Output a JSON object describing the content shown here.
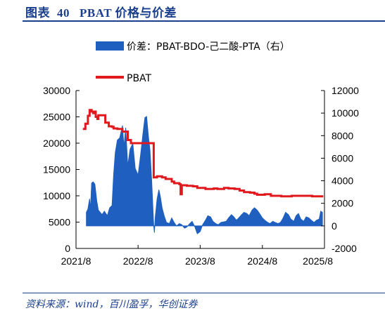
{
  "header": {
    "label": "图表",
    "number": "40",
    "title": "PBAT 价格与价差"
  },
  "source": "资料来源：wind，百川盈孚，华创证券",
  "colors": {
    "spread": "#1f5fbf",
    "price": "#e0191e",
    "title": "#1a3f8c"
  },
  "chart_data": {
    "type": "area+line",
    "dual_axis": true,
    "x": {
      "ticks": [
        "2021/8",
        "2022/8",
        "2023/8",
        "2024/8",
        "2025/8"
      ],
      "range": [
        "2021/8",
        "2025/8"
      ]
    },
    "y_left": {
      "ticks": [
        0,
        5000,
        10000,
        15000,
        20000,
        25000,
        30000
      ],
      "range": [
        0,
        30000
      ]
    },
    "y_right": {
      "ticks": [
        -2000,
        0,
        2000,
        4000,
        6000,
        8000,
        10000,
        12000
      ],
      "range": [
        -2000,
        12000
      ]
    },
    "legend": {
      "position": "top",
      "items": [
        "价差：PBAT-BDO-己二酸-PTA（右）",
        "PBAT"
      ]
    },
    "series": [
      {
        "name": "价差：PBAT-BDO-己二酸-PTA（右）",
        "type": "area",
        "axis": "right",
        "points": [
          [
            "2021-10-01",
            1200
          ],
          [
            "2021-10-10",
            1500
          ],
          [
            "2021-10-20",
            2400
          ],
          [
            "2021-10-25",
            1400
          ],
          [
            "2021-11-01",
            3800
          ],
          [
            "2021-11-10",
            3900
          ],
          [
            "2021-11-20",
            3700
          ],
          [
            "2021-12-01",
            2200
          ],
          [
            "2021-12-10",
            1400
          ],
          [
            "2022-01-01",
            1000
          ],
          [
            "2022-01-15",
            1300
          ],
          [
            "2022-02-01",
            900
          ],
          [
            "2022-02-15",
            1600
          ],
          [
            "2022-03-01",
            1800
          ],
          [
            "2022-03-10",
            4500
          ],
          [
            "2022-03-20",
            6500
          ],
          [
            "2022-04-01",
            7600
          ],
          [
            "2022-04-15",
            7800
          ],
          [
            "2022-05-01",
            8900
          ],
          [
            "2022-05-10",
            7000
          ],
          [
            "2022-05-20",
            8700
          ],
          [
            "2022-06-01",
            5300
          ],
          [
            "2022-06-15",
            6800
          ],
          [
            "2022-07-01",
            7300
          ],
          [
            "2022-07-15",
            5100
          ],
          [
            "2022-08-01",
            4500
          ],
          [
            "2022-08-15",
            6200
          ],
          [
            "2022-09-01",
            8500
          ],
          [
            "2022-09-10",
            9600
          ],
          [
            "2022-09-20",
            9700
          ],
          [
            "2022-10-01",
            7900
          ],
          [
            "2022-10-10",
            6700
          ],
          [
            "2022-10-20",
            4000
          ],
          [
            "2022-11-01",
            0
          ],
          [
            "2022-11-05",
            -600
          ],
          [
            "2022-11-10",
            800
          ],
          [
            "2022-11-15",
            1500
          ],
          [
            "2022-11-20",
            2300
          ],
          [
            "2022-12-01",
            3200
          ],
          [
            "2022-12-10",
            2600
          ],
          [
            "2022-12-20",
            1600
          ],
          [
            "2023-01-01",
            900
          ],
          [
            "2023-01-15",
            300
          ],
          [
            "2023-02-01",
            200
          ],
          [
            "2023-02-15",
            700
          ],
          [
            "2023-03-01",
            300
          ],
          [
            "2023-03-15",
            0
          ],
          [
            "2023-04-01",
            200
          ],
          [
            "2023-04-15",
            100
          ],
          [
            "2023-05-01",
            -200
          ],
          [
            "2023-05-15",
            -100
          ],
          [
            "2023-06-01",
            200
          ],
          [
            "2023-06-15",
            400
          ],
          [
            "2023-07-01",
            -100
          ],
          [
            "2023-07-15",
            -700
          ],
          [
            "2023-08-01",
            -500
          ],
          [
            "2023-08-15",
            100
          ],
          [
            "2023-09-01",
            500
          ],
          [
            "2023-09-15",
            900
          ],
          [
            "2023-10-01",
            800
          ],
          [
            "2023-10-15",
            400
          ],
          [
            "2023-11-01",
            200
          ],
          [
            "2023-11-15",
            100
          ],
          [
            "2023-12-01",
            300
          ],
          [
            "2024-01-01",
            400
          ],
          [
            "2024-01-15",
            700
          ],
          [
            "2024-02-01",
            1000
          ],
          [
            "2024-02-15",
            800
          ],
          [
            "2024-03-01",
            500
          ],
          [
            "2024-03-15",
            700
          ],
          [
            "2024-04-01",
            1000
          ],
          [
            "2024-04-15",
            1200
          ],
          [
            "2024-05-01",
            1100
          ],
          [
            "2024-05-15",
            900
          ],
          [
            "2024-06-01",
            1400
          ],
          [
            "2024-06-15",
            1600
          ],
          [
            "2024-07-01",
            1400
          ],
          [
            "2024-07-15",
            1100
          ],
          [
            "2024-08-01",
            700
          ],
          [
            "2024-08-15",
            500
          ],
          [
            "2024-09-01",
            300
          ],
          [
            "2024-09-15",
            200
          ],
          [
            "2024-10-01",
            400
          ],
          [
            "2024-10-15",
            300
          ],
          [
            "2024-11-01",
            200
          ],
          [
            "2024-11-15",
            300
          ],
          [
            "2024-12-01",
            700
          ],
          [
            "2024-12-15",
            1200
          ],
          [
            "2025-01-01",
            1000
          ],
          [
            "2025-01-15",
            600
          ],
          [
            "2025-02-01",
            400
          ],
          [
            "2025-02-15",
            900
          ],
          [
            "2025-03-01",
            1100
          ],
          [
            "2025-03-15",
            600
          ],
          [
            "2025-04-01",
            400
          ],
          [
            "2025-04-15",
            800
          ],
          [
            "2025-05-01",
            700
          ],
          [
            "2025-05-15",
            500
          ],
          [
            "2025-06-01",
            300
          ],
          [
            "2025-06-15",
            500
          ],
          [
            "2025-07-01",
            600
          ],
          [
            "2025-07-10",
            1300
          ],
          [
            "2025-07-20",
            1200
          ]
        ]
      },
      {
        "name": "PBAT",
        "type": "line",
        "axis": "left",
        "points": [
          [
            "2021-09-10",
            22700
          ],
          [
            "2021-09-20",
            22700
          ],
          [
            "2021-09-25",
            23700
          ],
          [
            "2021-10-05",
            23700
          ],
          [
            "2021-10-10",
            25200
          ],
          [
            "2021-10-20",
            26300
          ],
          [
            "2021-11-01",
            26000
          ],
          [
            "2021-11-10",
            25700
          ],
          [
            "2021-11-20",
            26000
          ],
          [
            "2021-11-25",
            25000
          ],
          [
            "2021-12-05",
            24600
          ],
          [
            "2021-12-10",
            25300
          ],
          [
            "2022-01-10",
            25300
          ],
          [
            "2022-01-20",
            23900
          ],
          [
            "2022-02-05",
            23900
          ],
          [
            "2022-02-10",
            23200
          ],
          [
            "2022-03-01",
            23100
          ],
          [
            "2022-03-10",
            22800
          ],
          [
            "2022-04-01",
            22700
          ],
          [
            "2022-05-01",
            22200
          ],
          [
            "2022-06-01",
            20600
          ],
          [
            "2022-06-20",
            20000
          ],
          [
            "2022-08-01",
            20000
          ],
          [
            "2022-08-10",
            20000
          ],
          [
            "2022-10-25",
            20000
          ],
          [
            "2022-11-01",
            13500
          ],
          [
            "2022-11-20",
            13700
          ],
          [
            "2022-12-20",
            13500
          ],
          [
            "2023-01-10",
            13200
          ],
          [
            "2023-02-15",
            12700
          ],
          [
            "2023-03-01",
            12400
          ],
          [
            "2023-04-01",
            12200
          ],
          [
            "2023-04-08",
            10300
          ],
          [
            "2023-04-15",
            12000
          ],
          [
            "2023-05-15",
            11900
          ],
          [
            "2023-06-20",
            11800
          ],
          [
            "2023-07-15",
            11500
          ],
          [
            "2023-09-01",
            11300
          ],
          [
            "2023-10-20",
            11400
          ],
          [
            "2023-11-10",
            11300
          ],
          [
            "2023-12-20",
            11500
          ],
          [
            "2024-01-15",
            11400
          ],
          [
            "2024-02-20",
            11300
          ],
          [
            "2024-03-20",
            11000
          ],
          [
            "2024-04-15",
            10700
          ],
          [
            "2024-05-20",
            10600
          ],
          [
            "2024-06-15",
            10400
          ],
          [
            "2024-07-01",
            10200
          ],
          [
            "2024-08-15",
            10300
          ],
          [
            "2024-09-20",
            10000
          ],
          [
            "2024-10-20",
            10000
          ],
          [
            "2024-11-20",
            9900
          ],
          [
            "2025-01-20",
            10000
          ],
          [
            "2025-03-20",
            10000
          ],
          [
            "2025-05-20",
            9900
          ],
          [
            "2025-07-25",
            9900
          ]
        ]
      }
    ]
  }
}
